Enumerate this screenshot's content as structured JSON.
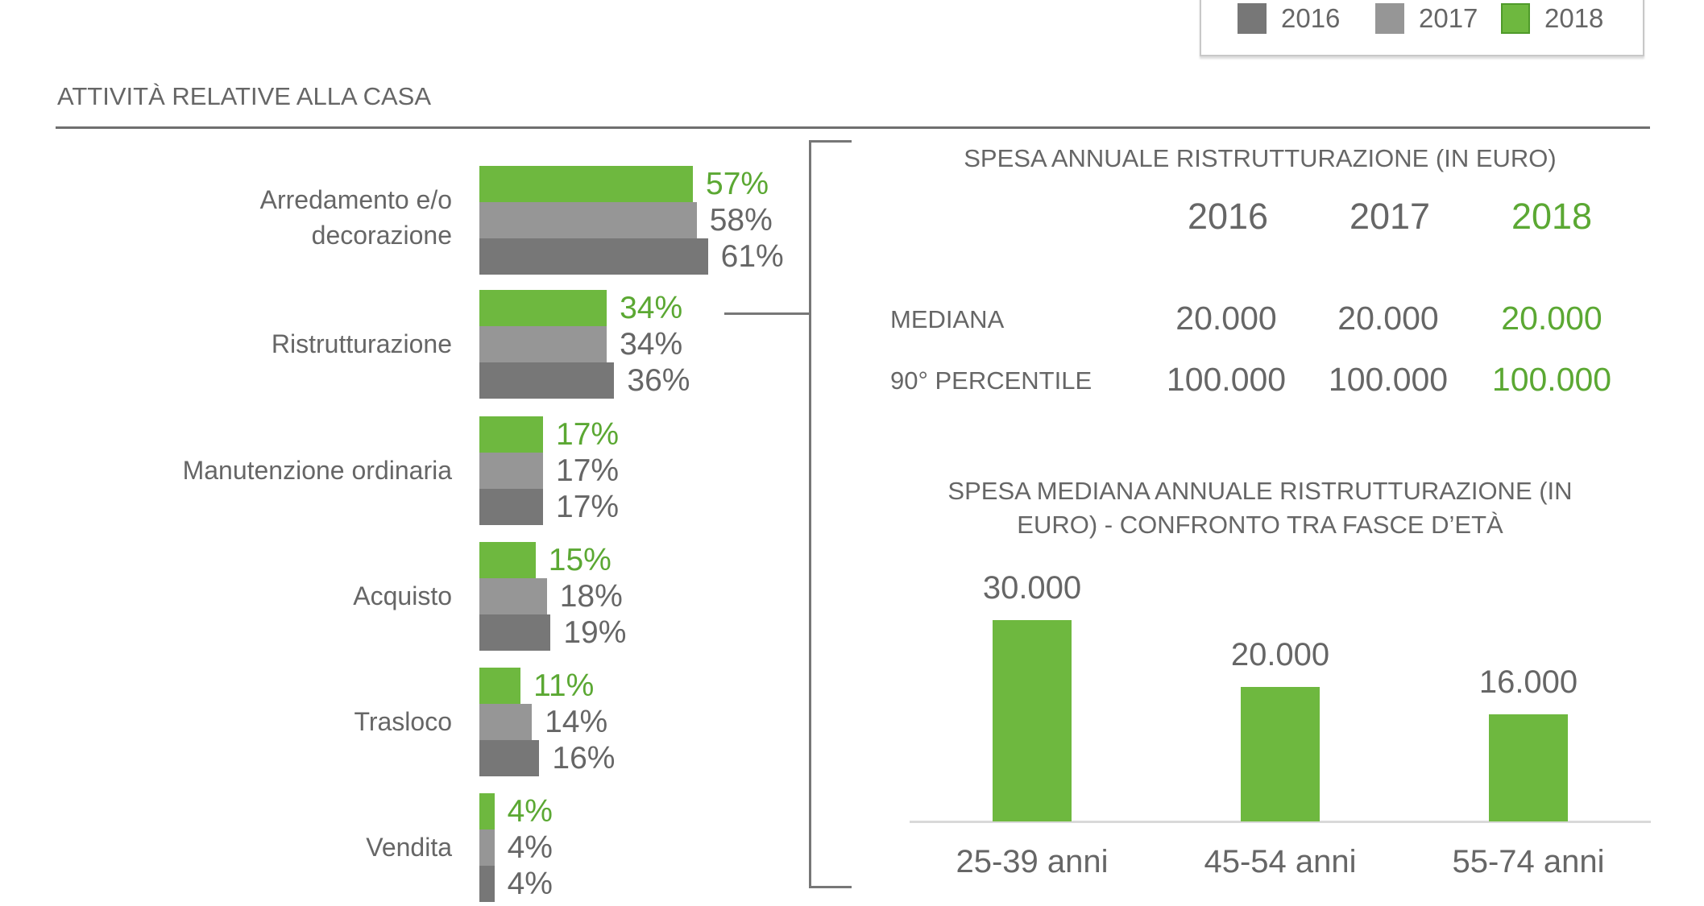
{
  "legend": {
    "items": [
      {
        "label": "2016",
        "color": "#777777"
      },
      {
        "label": "2017",
        "color": "#969696"
      },
      {
        "label": "2018",
        "color": "#6eb83f"
      }
    ]
  },
  "section_title": "ATTIVITÀ RELATIVE ALLA CASA",
  "chart_data": [
    {
      "type": "bar",
      "orientation": "horizontal",
      "title": "ATTIVITÀ RELATIVE ALLA CASA",
      "categories": [
        "Arredamento e/o decorazione",
        "Ristrutturazione",
        "Manutenzione ordinaria",
        "Acquisto",
        "Trasloco",
        "Vendita"
      ],
      "series": [
        {
          "name": "2018",
          "values": [
            57,
            34,
            17,
            15,
            11,
            4
          ],
          "labels": [
            "57%",
            "34%",
            "17%",
            "15%",
            "11%",
            "4%"
          ]
        },
        {
          "name": "2017",
          "values": [
            58,
            34,
            17,
            18,
            14,
            4
          ],
          "labels": [
            "58%",
            "34%",
            "17%",
            "18%",
            "14%",
            "4%"
          ]
        },
        {
          "name": "2016",
          "values": [
            61,
            36,
            17,
            19,
            16,
            4
          ],
          "labels": [
            "61%",
            "36%",
            "17%",
            "19%",
            "16%",
            "4%"
          ]
        }
      ],
      "unit": "%"
    },
    {
      "type": "bar",
      "title": "SPESA MEDIANA ANNUALE RISTRUTTURAZIONE (IN EURO) - CONFRONTO TRA FASCE D’ETÀ",
      "categories": [
        "25-39 anni",
        "45-54 anni",
        "55-74 anni"
      ],
      "values": [
        30000,
        20000,
        16000
      ],
      "labels": [
        "30.000",
        "20.000",
        "16.000"
      ],
      "ylim": [
        0,
        30000
      ]
    }
  ],
  "table": {
    "title": "SPESA ANNUALE RISTRUTTURAZIONE (IN EURO)",
    "years": [
      "2016",
      "2017",
      "2018"
    ],
    "rows": [
      {
        "label": "MEDIANA",
        "values": [
          "20.000",
          "20.000",
          "20.000"
        ]
      },
      {
        "label": "90° PERCENTILE",
        "values": [
          "100.000",
          "100.000",
          "100.000"
        ]
      }
    ]
  },
  "age_chart": {
    "title_line1": "SPESA MEDIANA ANNUALE RISTRUTTURAZIONE (IN",
    "title_line2": "EURO) - CONFRONTO TRA FASCE D’ETÀ"
  },
  "colors": {
    "green": "#6eb83f",
    "green_text": "#5ba833",
    "gray2017": "#969696",
    "gray2016": "#777777"
  }
}
